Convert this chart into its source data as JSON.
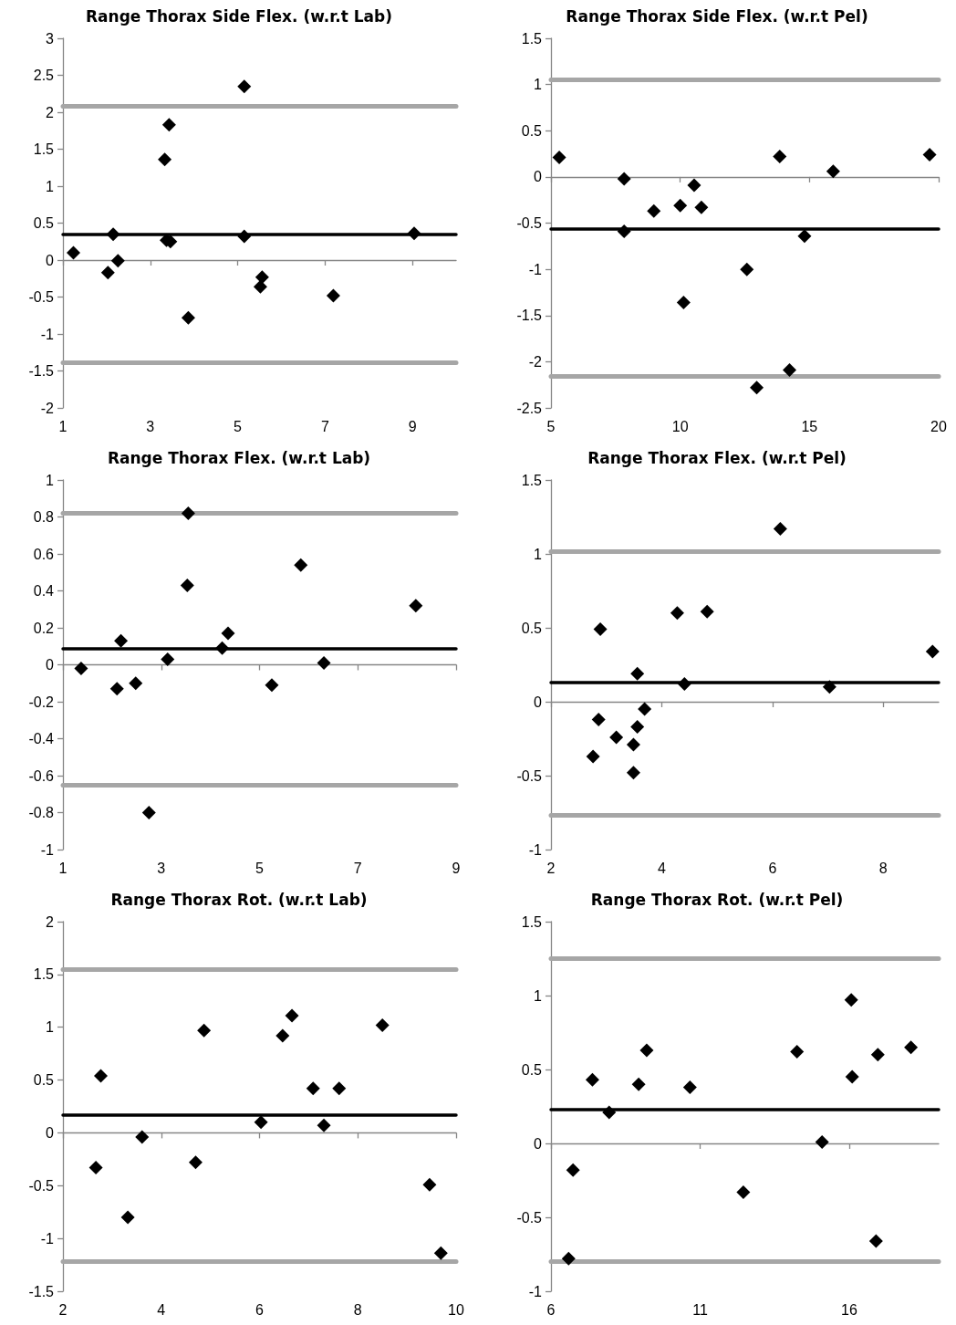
{
  "chart_data": [
    {
      "type": "scatter",
      "title": "Range Thorax Side Flex. (w.r.t Lab)",
      "xlim": [
        1,
        10
      ],
      "xticks": [
        1,
        3,
        5,
        7,
        9
      ],
      "ylim": [
        -2,
        3
      ],
      "yticks": [
        -2,
        -1.5,
        -1,
        -0.5,
        0,
        0.5,
        1,
        1.5,
        2,
        2.5,
        3
      ],
      "marker": "diamond",
      "ref_lines": [
        {
          "axis": "y",
          "value": 0.35,
          "color": "#000000"
        },
        {
          "axis": "y",
          "value": 2.08,
          "color": "#a6a6a6"
        },
        {
          "axis": "y",
          "value": -1.39,
          "color": "#a6a6a6"
        }
      ],
      "series": [
        {
          "color": "#000000",
          "x": [
            1.24,
            2.15,
            2.03,
            2.26,
            3.33,
            3.43,
            3.37,
            3.46,
            3.87,
            5.15,
            5.15,
            5.56,
            5.52,
            7.19,
            9.04
          ],
          "values": [
            0.1,
            0.35,
            -0.17,
            -0.01,
            1.36,
            1.83,
            0.27,
            0.25,
            -0.78,
            2.35,
            0.32,
            -0.23,
            -0.36,
            -0.48,
            0.36
          ]
        }
      ]
    },
    {
      "type": "scatter",
      "title": "Range Thorax Side Flex. (w.r.t Pel)",
      "xlim": [
        5,
        20
      ],
      "xticks": [
        5,
        10,
        15,
        20
      ],
      "ylim": [
        -2.5,
        1.5
      ],
      "yticks": [
        -2.5,
        -2,
        -1.5,
        -1,
        -0.5,
        0,
        0.5,
        1,
        1.5
      ],
      "marker": "diamond",
      "ref_lines": [
        {
          "axis": "y",
          "value": -0.56,
          "color": "#000000"
        },
        {
          "axis": "y",
          "value": 1.05,
          "color": "#a6a6a6"
        },
        {
          "axis": "y",
          "value": -2.16,
          "color": "#a6a6a6"
        }
      ],
      "series": [
        {
          "color": "#000000",
          "x": [
            5.32,
            7.83,
            7.83,
            8.98,
            10.0,
            10.54,
            10.82,
            10.13,
            12.58,
            13.85,
            12.96,
            14.23,
            14.81,
            15.92,
            19.65
          ],
          "values": [
            0.21,
            -0.02,
            -0.59,
            -0.37,
            -0.31,
            -0.09,
            -0.33,
            -1.36,
            -1.0,
            0.22,
            -2.28,
            -2.09,
            -0.64,
            0.06,
            0.24
          ]
        }
      ]
    },
    {
      "type": "scatter",
      "title": "Range Thorax Flex. (w.r.t Lab)",
      "xlim": [
        1,
        9
      ],
      "xticks": [
        1,
        3,
        5,
        7,
        9
      ],
      "ylim": [
        -1,
        1
      ],
      "yticks": [
        -1,
        -0.8,
        -0.6,
        -0.4,
        -0.2,
        0,
        0.2,
        0.4,
        0.6,
        0.8,
        1
      ],
      "marker": "diamond",
      "ref_lines": [
        {
          "axis": "y",
          "value": 0.085,
          "color": "#000000"
        },
        {
          "axis": "y",
          "value": 0.82,
          "color": "#a6a6a6"
        },
        {
          "axis": "y",
          "value": -0.65,
          "color": "#a6a6a6"
        }
      ],
      "series": [
        {
          "color": "#000000",
          "x": [
            1.37,
            2.1,
            2.18,
            2.48,
            3.13,
            2.75,
            3.53,
            3.55,
            4.24,
            4.36,
            5.25,
            5.84,
            6.31,
            8.18
          ],
          "values": [
            -0.02,
            -0.13,
            0.13,
            -0.1,
            0.03,
            -0.8,
            0.43,
            0.82,
            0.09,
            0.17,
            -0.11,
            0.54,
            0.01,
            0.32
          ]
        }
      ]
    },
    {
      "type": "scatter",
      "title": "Range Thorax Flex. (w.r.t Pel)",
      "xlim": [
        2,
        9
      ],
      "xticks": [
        2,
        4,
        6,
        8
      ],
      "ylim": [
        -1,
        1.5
      ],
      "yticks": [
        -1,
        -0.5,
        0,
        0.5,
        1,
        1.5
      ],
      "marker": "diamond",
      "ref_lines": [
        {
          "axis": "y",
          "value": 0.125,
          "color": "#000000"
        },
        {
          "axis": "y",
          "value": 1.02,
          "color": "#a6a6a6"
        },
        {
          "axis": "y",
          "value": -0.77,
          "color": "#a6a6a6"
        }
      ],
      "series": [
        {
          "color": "#000000",
          "x": [
            2.89,
            2.86,
            2.76,
            3.18,
            3.49,
            3.49,
            3.56,
            3.56,
            3.69,
            4.28,
            4.41,
            4.82,
            6.14,
            7.03,
            8.89
          ],
          "values": [
            0.49,
            -0.12,
            -0.37,
            -0.24,
            -0.29,
            -0.48,
            0.19,
            -0.17,
            -0.05,
            0.6,
            0.12,
            0.61,
            1.17,
            0.1,
            0.34
          ]
        }
      ]
    },
    {
      "type": "scatter",
      "title": "Range Thorax Rot. (w.r.t Lab)",
      "xlim": [
        2,
        10
      ],
      "xticks": [
        2,
        4,
        6,
        8,
        10
      ],
      "ylim": [
        -1.5,
        2
      ],
      "yticks": [
        -1.5,
        -1,
        -0.5,
        0,
        0.5,
        1,
        1.5,
        2
      ],
      "marker": "diamond",
      "ref_lines": [
        {
          "axis": "y",
          "value": 0.17,
          "color": "#000000"
        },
        {
          "axis": "y",
          "value": 1.55,
          "color": "#a6a6a6"
        },
        {
          "axis": "y",
          "value": -1.22,
          "color": "#a6a6a6"
        }
      ],
      "series": [
        {
          "color": "#000000",
          "x": [
            2.67,
            2.77,
            3.32,
            3.61,
            4.7,
            4.87,
            6.03,
            6.47,
            6.66,
            7.09,
            7.31,
            7.62,
            8.5,
            9.46,
            9.69
          ],
          "values": [
            -0.33,
            0.54,
            -0.8,
            -0.04,
            -0.28,
            0.97,
            0.1,
            0.92,
            1.11,
            0.42,
            0.07,
            0.42,
            1.02,
            -0.49,
            -1.14
          ]
        }
      ]
    },
    {
      "type": "scatter",
      "title": "Range Thorax Rot. (w.r.t Pel)",
      "xlim": [
        6,
        19
      ],
      "xticks": [
        6,
        11,
        16
      ],
      "ylim": [
        -1,
        1.5
      ],
      "yticks": [
        -1,
        -0.5,
        0,
        0.5,
        1,
        1.5
      ],
      "marker": "diamond",
      "ref_lines": [
        {
          "axis": "y",
          "value": 0.23,
          "color": "#000000"
        },
        {
          "axis": "y",
          "value": 1.25,
          "color": "#a6a6a6"
        },
        {
          "axis": "y",
          "value": -0.8,
          "color": "#a6a6a6"
        }
      ],
      "series": [
        {
          "color": "#000000",
          "x": [
            6.59,
            6.74,
            7.39,
            7.95,
            8.94,
            9.21,
            10.66,
            12.45,
            14.25,
            15.09,
            16.07,
            16.1,
            16.96,
            16.9,
            18.07
          ],
          "values": [
            -0.78,
            -0.18,
            0.43,
            0.21,
            0.4,
            0.63,
            0.38,
            -0.33,
            0.62,
            0.01,
            0.97,
            0.45,
            0.6,
            -0.66,
            0.65
          ]
        }
      ]
    }
  ]
}
